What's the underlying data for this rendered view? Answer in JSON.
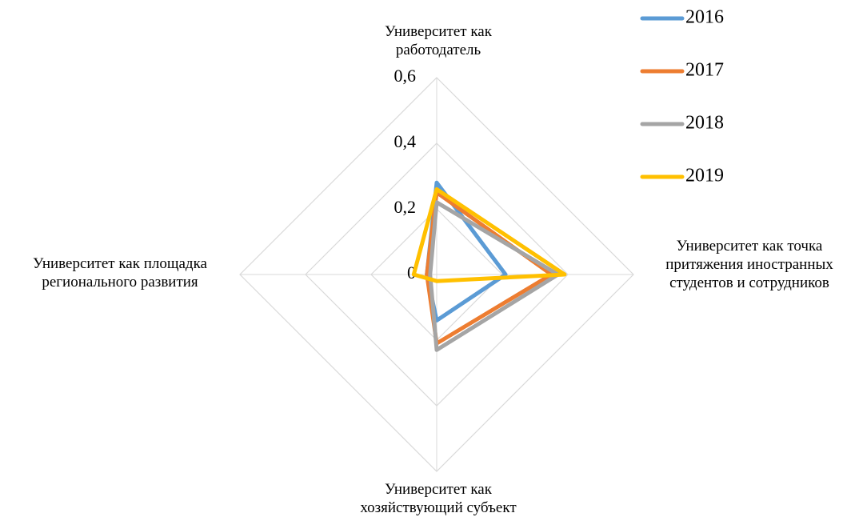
{
  "chart_data": {
    "type": "radar",
    "categories": [
      "Университет как работодатель",
      "Университет как точка притяжения иностранных студентов и сотрудников",
      "Университет как хозяйствующий субъект",
      "Университет как площадка регионального развития"
    ],
    "series": [
      {
        "name": "2016",
        "color": "#5b9bd5",
        "values": [
          0.28,
          0.21,
          0.14,
          0.03
        ]
      },
      {
        "name": "2017",
        "color": "#ed7d31",
        "values": [
          0.25,
          0.35,
          0.21,
          0.03
        ]
      },
      {
        "name": "2018",
        "color": "#a5a5a5",
        "values": [
          0.22,
          0.37,
          0.23,
          0.02
        ]
      },
      {
        "name": "2019",
        "color": "#ffc000",
        "values": [
          0.26,
          0.39,
          0.02,
          0.07
        ]
      }
    ],
    "ylim": [
      0,
      0.6
    ],
    "yticks": [
      0,
      {
        "value": 0.2,
        "label": "0,2"
      },
      {
        "value": 0.4,
        "label": "0,4"
      },
      {
        "value": 0.6,
        "label": "0,6"
      }
    ],
    "grid": true,
    "legend": "top-right"
  }
}
